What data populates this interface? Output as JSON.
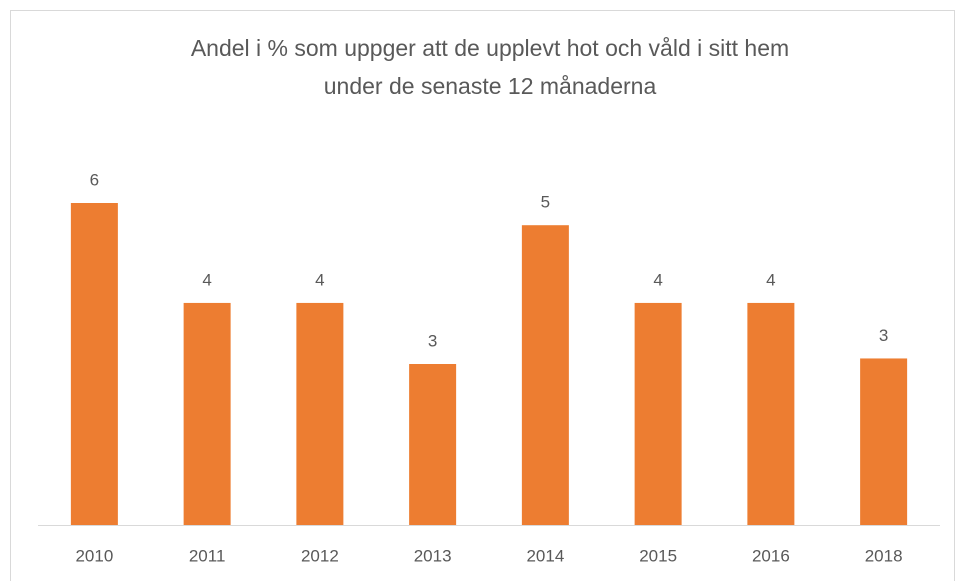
{
  "chart_data": {
    "type": "bar",
    "title": [
      "Andel i % som uppger att de upplevt hot och våld i sitt hem",
      "under de senaste 12 månaderna"
    ],
    "categories": [
      "2010",
      "2011",
      "2012",
      "2013",
      "2014",
      "2015",
      "2016",
      "2018"
    ],
    "values": [
      5.8,
      4.0,
      4.0,
      2.9,
      5.4,
      4.0,
      4.0,
      3.0
    ],
    "value_labels": [
      "6",
      "4",
      "4",
      "3",
      "5",
      "4",
      "4",
      "3"
    ],
    "color": "#ed7d31"
  }
}
